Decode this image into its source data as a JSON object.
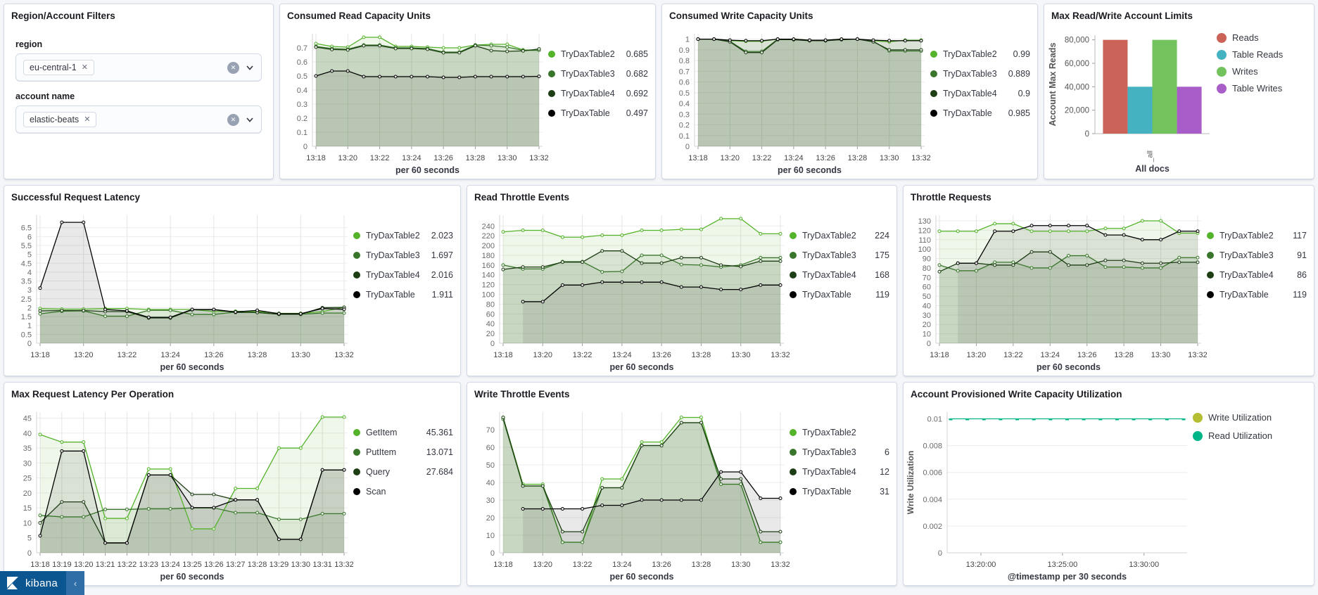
{
  "filters": {
    "title": "Region/Account Filters",
    "fields": [
      {
        "label": "region",
        "selected": "eu-central-1"
      },
      {
        "label": "account name",
        "selected": "elastic-beats"
      }
    ]
  },
  "icons": {
    "pill_remove": "✕",
    "clear_selection": "✕",
    "chevron_down": "chevron-down",
    "collapse": "‹"
  },
  "kibana_bar": {
    "app_name": "kibana"
  },
  "chart_data": [
    {
      "type": "line",
      "title": "Consumed Read Capacity Units",
      "xlabel": "per 60 seconds",
      "x": [
        "13:18",
        "13:19",
        "13:20",
        "13:21",
        "13:22",
        "13:23",
        "13:24",
        "13:25",
        "13:26",
        "13:27",
        "13:28",
        "13:29",
        "13:30",
        "13:31",
        "13:32"
      ],
      "x_tick_every": 2,
      "ylim": [
        0,
        0.8
      ],
      "yticks": [
        0,
        0.1,
        0.2,
        0.3,
        0.4,
        0.5,
        0.6,
        0.7
      ],
      "grid": true,
      "legend_position": "right",
      "series": [
        {
          "name": "TryDaxTable2",
          "legend_value": "0.685",
          "color": "#54b32a",
          "values": [
            0.73,
            0.71,
            0.705,
            0.775,
            0.775,
            0.71,
            0.71,
            0.705,
            0.7,
            0.7,
            0.72,
            0.725,
            0.725,
            0.685,
            0.685
          ]
        },
        {
          "name": "TryDaxTable3",
          "legend_value": "0.682",
          "color": "#39762b",
          "values": [
            0.71,
            0.695,
            0.69,
            0.72,
            0.72,
            0.7,
            0.7,
            0.695,
            0.67,
            0.67,
            0.72,
            0.715,
            0.705,
            0.682,
            0.682
          ]
        },
        {
          "name": "TryDaxTable4",
          "legend_value": "0.692",
          "color": "#1d3d14",
          "values": [
            0.705,
            0.688,
            0.685,
            0.715,
            0.715,
            0.695,
            0.695,
            0.69,
            0.665,
            0.665,
            0.715,
            0.68,
            0.675,
            0.678,
            0.692
          ]
        },
        {
          "name": "TryDaxTable",
          "legend_value": "0.497",
          "color": "#000000",
          "values": [
            0.5,
            0.535,
            0.535,
            0.495,
            0.495,
            0.495,
            0.495,
            0.495,
            0.49,
            0.49,
            0.495,
            0.495,
            0.495,
            0.495,
            0.497
          ]
        }
      ]
    },
    {
      "type": "line",
      "title": "Consumed Write Capacity Units",
      "xlabel": "per 60 seconds",
      "x": [
        "13:18",
        "13:19",
        "13:20",
        "13:21",
        "13:22",
        "13:23",
        "13:24",
        "13:25",
        "13:26",
        "13:27",
        "13:28",
        "13:29",
        "13:30",
        "13:31",
        "13:32"
      ],
      "x_tick_every": 2,
      "ylim": [
        0,
        1.05
      ],
      "yticks": [
        0,
        0.1,
        0.2,
        0.3,
        0.4,
        0.5,
        0.6,
        0.7,
        0.8,
        0.9,
        1
      ],
      "grid": true,
      "legend_position": "right",
      "series": [
        {
          "name": "TryDaxTable2",
          "legend_value": "0.99",
          "color": "#54b32a",
          "values": [
            1,
            1,
            0.985,
            0.98,
            0.98,
            1,
            1,
            0.99,
            0.99,
            1,
            1,
            0.985,
            0.975,
            0.99,
            0.99
          ]
        },
        {
          "name": "TryDaxTable3",
          "legend_value": "0.889",
          "color": "#39762b",
          "values": [
            1,
            1,
            0.98,
            0.885,
            0.885,
            1,
            0.995,
            0.985,
            0.985,
            0.995,
            1,
            0.98,
            0.89,
            0.889,
            0.889
          ]
        },
        {
          "name": "TryDaxTable4",
          "legend_value": "0.9",
          "color": "#1d3d14",
          "values": [
            1,
            1,
            0.975,
            0.875,
            0.875,
            0.995,
            0.995,
            0.985,
            0.985,
            0.995,
            1,
            0.975,
            0.9,
            0.9,
            0.9
          ]
        },
        {
          "name": "TryDaxTable",
          "legend_value": "0.985",
          "color": "#000000",
          "values": [
            1,
            1,
            0.99,
            0.985,
            0.985,
            1,
            1,
            0.99,
            0.99,
            1,
            1,
            0.99,
            0.985,
            0.985,
            0.985
          ]
        }
      ]
    },
    {
      "type": "bar",
      "title": "Max Read/Write Account Limits",
      "categories": [
        "_all"
      ],
      "xlabel": "All docs",
      "ylabel": "Account Max Reads",
      "ylim": [
        0,
        84000
      ],
      "yticks": [
        0,
        20000,
        40000,
        60000,
        80000
      ],
      "legend_position": "right",
      "series": [
        {
          "name": "Reads",
          "color": "#cb6358",
          "values": [
            80000
          ]
        },
        {
          "name": "Table Reads",
          "color": "#45b2c2",
          "values": [
            40000
          ]
        },
        {
          "name": "Writes",
          "color": "#72c35e",
          "values": [
            80000
          ]
        },
        {
          "name": "Table Writes",
          "color": "#a85dc8",
          "values": [
            40000
          ]
        }
      ]
    },
    {
      "type": "line",
      "title": "Successful Request Latency",
      "xlabel": "per 60 seconds",
      "x": [
        "13:18",
        "13:19",
        "13:20",
        "13:21",
        "13:22",
        "13:23",
        "13:24",
        "13:25",
        "13:26",
        "13:27",
        "13:28",
        "13:29",
        "13:30",
        "13:31",
        "13:32"
      ],
      "x_tick_every": 2,
      "ylim": [
        0,
        7.2
      ],
      "yticks": [
        0,
        0.5,
        1,
        1.5,
        2,
        2.5,
        3,
        3.5,
        4,
        4.5,
        5,
        5.5,
        6,
        6.5
      ],
      "grid": true,
      "legend_position": "right",
      "series": [
        {
          "name": "TryDaxTable2",
          "legend_value": "2.023",
          "color": "#54b32a",
          "values": [
            1.95,
            1.92,
            1.92,
            1.95,
            1.95,
            1.9,
            1.9,
            1.9,
            1.78,
            1.8,
            1.78,
            1.68,
            1.68,
            1.78,
            2.023
          ]
        },
        {
          "name": "TryDaxTable3",
          "legend_value": "1.697",
          "color": "#39762b",
          "values": [
            1.65,
            1.8,
            1.82,
            1.52,
            1.52,
            1.85,
            1.85,
            1.62,
            1.62,
            1.75,
            1.72,
            1.63,
            1.63,
            1.697,
            1.697
          ]
        },
        {
          "name": "TryDaxTable4",
          "legend_value": "2.016",
          "color": "#1d3d14",
          "values": [
            1.82,
            1.84,
            1.84,
            1.78,
            1.78,
            1.42,
            1.42,
            1.88,
            1.88,
            1.73,
            1.73,
            1.63,
            1.63,
            2.0,
            2.016
          ]
        },
        {
          "name": "TryDaxTable",
          "legend_value": "1.911",
          "color": "#000000",
          "values": [
            3.1,
            6.8,
            6.8,
            1.9,
            1.82,
            1.46,
            1.46,
            1.9,
            1.9,
            1.76,
            1.85,
            1.66,
            1.66,
            1.95,
            1.911
          ]
        }
      ]
    },
    {
      "type": "line",
      "title": "Read Throttle Events",
      "xlabel": "per 60 seconds",
      "x": [
        "13:18",
        "13:19",
        "13:20",
        "13:21",
        "13:22",
        "13:23",
        "13:24",
        "13:25",
        "13:26",
        "13:27",
        "13:28",
        "13:29",
        "13:30",
        "13:31",
        "13:32"
      ],
      "x_tick_every": 2,
      "ylim": [
        0,
        262
      ],
      "yticks": [
        0,
        20,
        40,
        60,
        80,
        100,
        120,
        140,
        160,
        180,
        200,
        220,
        240
      ],
      "grid": true,
      "legend_position": "right",
      "series": [
        {
          "name": "TryDaxTable2",
          "legend_value": "224",
          "color": "#54b32a",
          "values": [
            228,
            231,
            231,
            217,
            217,
            221,
            221,
            231,
            231,
            233,
            233,
            255,
            255,
            224,
            224
          ]
        },
        {
          "name": "TryDaxTable3",
          "legend_value": "175",
          "color": "#39762b",
          "values": [
            160,
            152,
            152,
            167,
            167,
            146,
            147,
            180,
            180,
            161,
            160,
            156,
            160,
            175,
            175
          ]
        },
        {
          "name": "TryDaxTable4",
          "legend_value": "168",
          "color": "#1d3d14",
          "values": [
            151,
            156,
            156,
            166,
            166,
            189,
            189,
            164,
            164,
            175,
            175,
            160,
            157,
            168,
            168
          ]
        },
        {
          "name": "TryDaxTable",
          "legend_value": "119",
          "color": "#000000",
          "values": [
            null,
            85,
            85,
            119,
            119,
            125,
            125,
            125,
            125,
            115,
            115,
            110,
            110,
            119,
            119
          ]
        }
      ]
    },
    {
      "type": "line",
      "title": "Throttle Requests",
      "xlabel": "per 60 seconds",
      "x": [
        "13:18",
        "13:19",
        "13:20",
        "13:21",
        "13:22",
        "13:23",
        "13:24",
        "13:25",
        "13:26",
        "13:27",
        "13:28",
        "13:29",
        "13:30",
        "13:31",
        "13:32"
      ],
      "x_tick_every": 2,
      "ylim": [
        0,
        136
      ],
      "yticks": [
        0,
        10,
        20,
        30,
        40,
        50,
        60,
        70,
        80,
        90,
        100,
        110,
        120,
        130
      ],
      "grid": true,
      "legend_position": "right",
      "series": [
        {
          "name": "TryDaxTable2",
          "legend_value": "117",
          "color": "#54b32a",
          "values": [
            119,
            119,
            119,
            127,
            127,
            119,
            119,
            119,
            119,
            122,
            122,
            130,
            130,
            117,
            117
          ]
        },
        {
          "name": "TryDaxTable3",
          "legend_value": "91",
          "color": "#39762b",
          "values": [
            83,
            77,
            77,
            86,
            86,
            80,
            80,
            93,
            93,
            81,
            81,
            80,
            80,
            91,
            91
          ]
        },
        {
          "name": "TryDaxTable4",
          "legend_value": "86",
          "color": "#1d3d14",
          "values": [
            76,
            85,
            85,
            83,
            83,
            97,
            97,
            83,
            83,
            88,
            88,
            85,
            85,
            86,
            86
          ]
        },
        {
          "name": "TryDaxTable",
          "legend_value": "119",
          "color": "#000000",
          "values": [
            null,
            85,
            85,
            119,
            119,
            125,
            125,
            125,
            125,
            115,
            115,
            110,
            110,
            119,
            119
          ]
        }
      ]
    },
    {
      "type": "line",
      "title": "Max Request Latency Per Operation",
      "xlabel": "per 60 seconds",
      "x": [
        "13:18",
        "13:19",
        "13:20",
        "13:21",
        "13:22",
        "13:23",
        "13:24",
        "13:25",
        "13:26",
        "13:27",
        "13:28",
        "13:29",
        "13:30",
        "13:31",
        "13:32"
      ],
      "x_tick_every": 1,
      "ylim": [
        0,
        47
      ],
      "yticks": [
        0,
        5,
        10,
        15,
        20,
        25,
        30,
        35,
        40,
        45
      ],
      "grid": true,
      "legend_position": "right",
      "series": [
        {
          "name": "GetItem",
          "legend_value": "45.361",
          "color": "#54b32a",
          "values": [
            39.5,
            37,
            37,
            11.5,
            11.5,
            28,
            28,
            8,
            8,
            21.5,
            21.5,
            35,
            35,
            45.361,
            45.361
          ]
        },
        {
          "name": "PutItem",
          "legend_value": "13.071",
          "color": "#39762b",
          "values": [
            12.5,
            12,
            12,
            14.5,
            14.5,
            14.7,
            14.7,
            15,
            15,
            13.4,
            13.4,
            11.2,
            11.2,
            13.071,
            13.071
          ]
        },
        {
          "name": "Query",
          "legend_value": "27.684",
          "color": "#1d3d14",
          "values": [
            10,
            17,
            17,
            3.3,
            3.3,
            26,
            26,
            19.5,
            19.5,
            17.7,
            17.7,
            4.5,
            4.5,
            27.684,
            27.684
          ]
        },
        {
          "name": "Scan",
          "legend_value": "",
          "color": "#000000",
          "values": [
            5.7,
            34,
            34,
            3.3,
            3.3,
            26,
            26,
            15.1,
            15.1,
            17.7,
            17.7,
            4.5,
            4.5,
            27.7,
            27.7
          ]
        }
      ]
    },
    {
      "type": "line",
      "title": "Write Throttle Events",
      "xlabel": "per 60 seconds",
      "x": [
        "13:18",
        "13:19",
        "13:20",
        "13:21",
        "13:22",
        "13:23",
        "13:24",
        "13:25",
        "13:26",
        "13:27",
        "13:28",
        "13:29",
        "13:30",
        "13:31",
        "13:32"
      ],
      "x_tick_every": 2,
      "ylim": [
        0,
        80
      ],
      "yticks": [
        0,
        10,
        20,
        30,
        40,
        50,
        60,
        70
      ],
      "grid": true,
      "legend_position": "right",
      "series": [
        {
          "name": "TryDaxTable2",
          "legend_value": "",
          "color": "#54b32a",
          "values": [
            77,
            39,
            39,
            6,
            6,
            42,
            42,
            63,
            63,
            77,
            77,
            39,
            39,
            6,
            6
          ]
        },
        {
          "name": "TryDaxTable3",
          "legend_value": "6",
          "color": "#39762b",
          "values": [
            76,
            38,
            38,
            6,
            6,
            37,
            37,
            61,
            61,
            74,
            74,
            39,
            39,
            6,
            6
          ]
        },
        {
          "name": "TryDaxTable4",
          "legend_value": "12",
          "color": "#1d3d14",
          "values": [
            77,
            38,
            38,
            12,
            12,
            37,
            37,
            61,
            61,
            74,
            74,
            42,
            42,
            12,
            12
          ]
        },
        {
          "name": "TryDaxTable",
          "legend_value": "31",
          "color": "#000000",
          "values": [
            null,
            25,
            25,
            25,
            25,
            27,
            27,
            30,
            30,
            30,
            30,
            46,
            46,
            31,
            31
          ]
        }
      ]
    },
    {
      "type": "line",
      "title": "Account Provisioned Write Capacity Utilization",
      "xlabel": "@timestamp per 30 seconds",
      "ylabel": "Write Utilization",
      "x_ticks_frac": [
        {
          "label": "13:20:00",
          "f": 0.13
        },
        {
          "label": "13:25:00",
          "f": 0.48
        },
        {
          "label": "13:30:00",
          "f": 0.83
        }
      ],
      "ylim": [
        0,
        0.0105
      ],
      "yticks": [
        0,
        0.002,
        0.004,
        0.006,
        0.008,
        0.01
      ],
      "grid": false,
      "marker": "dash",
      "legend_position": "right",
      "series": [
        {
          "name": "Write Utilization",
          "legend_value": "",
          "color": "#b5bd33",
          "hidden_line": true,
          "values": [
            0.01,
            0.01,
            0.01,
            0.01,
            0.01,
            0.01,
            0.01,
            0.01,
            0.01,
            0.01,
            0.01,
            0.01,
            0.01,
            0.01,
            0.01
          ]
        },
        {
          "name": "Read Utilization",
          "legend_value": "",
          "color": "#00b588",
          "values": [
            0.01,
            0.01,
            0.01,
            0.01,
            0.01,
            0.01,
            0.01,
            0.01,
            0.01,
            0.01,
            0.01,
            0.01,
            0.01,
            0.01,
            0.01
          ]
        }
      ]
    }
  ]
}
